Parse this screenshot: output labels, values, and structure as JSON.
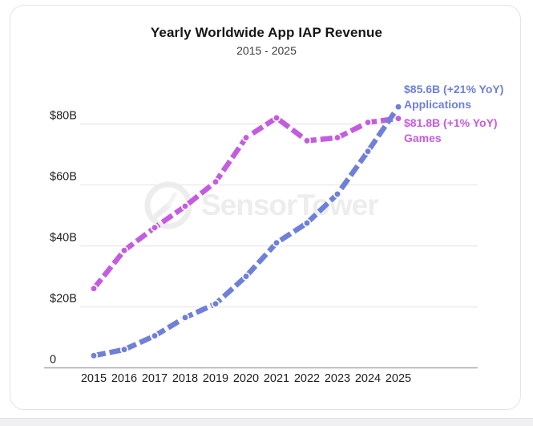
{
  "chart_data": {
    "type": "line",
    "title": "Yearly Worldwide App IAP Revenue",
    "subtitle": "2015 - 2025",
    "watermark": "SensorTower",
    "categories": [
      "2015",
      "2016",
      "2017",
      "2018",
      "2019",
      "2020",
      "2021",
      "2022",
      "2023",
      "2024",
      "2025"
    ],
    "xlabel": "",
    "ylabel": "",
    "ylim": [
      0,
      93
    ],
    "grid": true,
    "legend_position": "end-of-line annotations (top right)",
    "yticks": [
      {
        "value": 0,
        "label": "0"
      },
      {
        "value": 20,
        "label": "$20B"
      },
      {
        "value": 40,
        "label": "$40B"
      },
      {
        "value": 60,
        "label": "$60B"
      },
      {
        "value": 80,
        "label": "$80B"
      }
    ],
    "series": [
      {
        "name": "Applications",
        "color": "#6e80d8",
        "values": [
          4,
          6,
          10.5,
          16.5,
          21,
          30,
          41,
          47.5,
          57,
          71,
          85.6
        ],
        "line_style": "dashed-thick",
        "markers": "dot",
        "annotation": {
          "value_label": "$85.6B (+21% YoY)",
          "series_label": "Applications"
        }
      },
      {
        "name": "Games",
        "color": "#c45ce0",
        "values": [
          26,
          38.5,
          46,
          53,
          61,
          75.5,
          82,
          74.5,
          75.5,
          80.5,
          81.8
        ],
        "line_style": "dashed-thick",
        "markers": "dot",
        "annotation": {
          "value_label": "$81.8B (+1% YoY)",
          "series_label": "Games"
        }
      }
    ]
  }
}
